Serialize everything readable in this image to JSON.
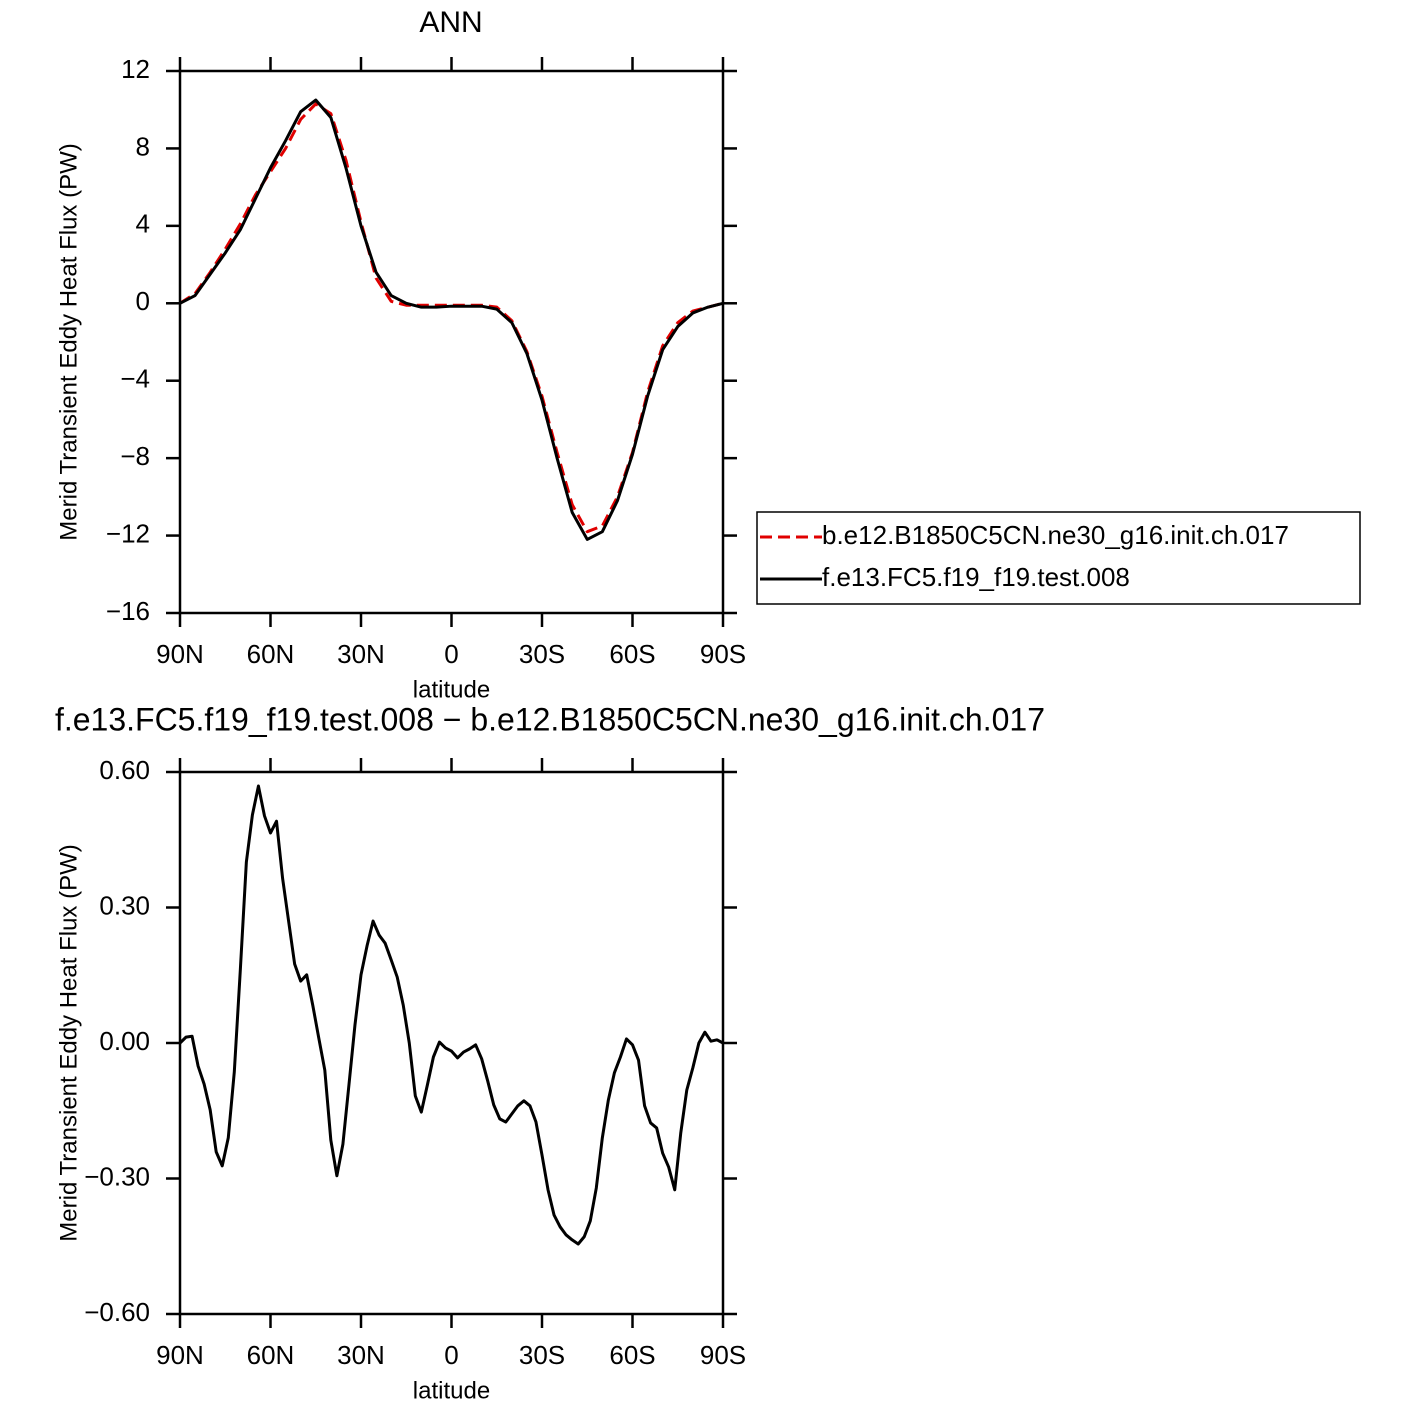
{
  "chart_data": [
    {
      "type": "line",
      "title": "ANN",
      "x_label": "latitude",
      "y_label": "Merid Transient Eddy Heat Flux (PW)",
      "x": [
        90,
        85,
        80,
        75,
        70,
        65,
        60,
        55,
        50,
        45,
        40,
        35,
        30,
        25,
        20,
        15,
        10,
        5,
        0,
        -5,
        -10,
        -15,
        -20,
        -25,
        -30,
        -35,
        -40,
        -45,
        -50,
        -55,
        -60,
        -65,
        -70,
        -75,
        -80,
        -85,
        -90
      ],
      "series": [
        {
          "name": "b.e12.B1850C5CN.ne30_g16.init.ch.017",
          "color": "#e00000",
          "linestyle": "dashed",
          "values": [
            0,
            0.5,
            1.6,
            2.8,
            4.1,
            5.6,
            6.8,
            8.0,
            9.5,
            10.3,
            9.8,
            7.4,
            4.2,
            1.3,
            0.1,
            -0.1,
            -0.1,
            -0.1,
            -0.1,
            -0.1,
            -0.1,
            -0.2,
            -0.9,
            -2.5,
            -4.8,
            -7.7,
            -10.4,
            -11.8,
            -11.5,
            -10.0,
            -7.7,
            -4.6,
            -2.2,
            -1.0,
            -0.4,
            -0.2,
            0
          ]
        },
        {
          "name": "f.e13.FC5.f19_f19.test.008",
          "color": "#000000",
          "linestyle": "solid",
          "values": [
            0,
            0.4,
            1.5,
            2.6,
            3.8,
            5.4,
            7.0,
            8.4,
            9.9,
            10.5,
            9.6,
            7.0,
            4.0,
            1.6,
            0.4,
            0.0,
            -0.2,
            -0.2,
            -0.15,
            -0.15,
            -0.15,
            -0.3,
            -1.0,
            -2.6,
            -5.0,
            -8.0,
            -10.8,
            -12.2,
            -11.8,
            -10.2,
            -7.8,
            -4.8,
            -2.4,
            -1.2,
            -0.5,
            -0.2,
            0
          ]
        }
      ],
      "xlim": [
        90,
        -90
      ],
      "xticks": [
        {
          "value": 90,
          "label": "90N"
        },
        {
          "value": 60,
          "label": "60N"
        },
        {
          "value": 30,
          "label": "30N"
        },
        0,
        {
          "value": -30,
          "label": "30S"
        },
        {
          "value": -60,
          "label": "60S"
        },
        {
          "value": -90,
          "label": "90S"
        }
      ],
      "ylim": [
        -16,
        12
      ],
      "yticks": [
        {
          "value": -16,
          "label": "−16"
        },
        {
          "value": -12,
          "label": "−12"
        },
        {
          "value": -8,
          "label": "−8"
        },
        {
          "value": -4,
          "label": "−4"
        },
        0,
        4,
        8,
        12
      ],
      "legend": "outside right"
    },
    {
      "type": "line",
      "title": "f.e13.FC5.f19_f19.test.008 − b.e12.B1850C5CN.ne30_g16.init.ch.017",
      "x_label": "latitude",
      "y_label": "Merid Transient Eddy Heat Flux (PW)",
      "x": [
        90,
        88,
        86,
        84,
        82,
        80,
        78,
        76,
        74,
        72,
        70,
        68,
        66,
        64,
        62,
        60,
        58,
        56,
        54,
        52,
        50,
        48,
        46,
        44,
        42,
        40,
        38,
        36,
        34,
        32,
        30,
        28,
        26,
        24,
        22,
        20,
        18,
        16,
        14,
        12,
        10,
        8,
        6,
        4,
        2,
        0,
        -2,
        -4,
        -6,
        -8,
        -10,
        -12,
        -14,
        -16,
        -18,
        -20,
        -22,
        -24,
        -26,
        -28,
        -30,
        -32,
        -34,
        -36,
        -38,
        -40,
        -42,
        -44,
        -46,
        -48,
        -50,
        -52,
        -54,
        -56,
        -58,
        -60,
        -62,
        -64,
        -66,
        -68,
        -70,
        -72,
        -74,
        -76,
        -78,
        -80,
        -82,
        -84,
        -86,
        -88,
        -90
      ],
      "series": [
        {
          "color": "#000000",
          "linestyle": "solid",
          "values": [
            0,
            0.013,
            0.015,
            -0.051,
            -0.091,
            -0.148,
            -0.241,
            -0.272,
            -0.21,
            -0.064,
            0.162,
            0.401,
            0.505,
            0.569,
            0.503,
            0.465,
            0.491,
            0.365,
            0.27,
            0.175,
            0.137,
            0.151,
            0.084,
            0.011,
            -0.06,
            -0.215,
            -0.294,
            -0.224,
            -0.093,
            0.04,
            0.151,
            0.215,
            0.27,
            0.239,
            0.221,
            0.184,
            0.146,
            0.084,
            0,
            -0.117,
            -0.153,
            -0.093,
            -0.031,
            0.002,
            -0.011,
            -0.018,
            -0.033,
            -0.02,
            -0.013,
            -0.004,
            -0.035,
            -0.084,
            -0.137,
            -0.168,
            -0.175,
            -0.157,
            -0.139,
            -0.128,
            -0.139,
            -0.175,
            -0.248,
            -0.325,
            -0.381,
            -0.407,
            -0.425,
            -0.436,
            -0.445,
            -0.429,
            -0.394,
            -0.321,
            -0.21,
            -0.126,
            -0.066,
            -0.031,
            0.009,
            -0.004,
            -0.038,
            -0.139,
            -0.177,
            -0.188,
            -0.244,
            -0.275,
            -0.325,
            -0.199,
            -0.104,
            -0.055,
            0,
            0.024,
            0.004,
            0.007,
            0
          ]
        }
      ],
      "xlim": [
        90,
        -90
      ],
      "xticks": [
        {
          "value": 90,
          "label": "90N"
        },
        {
          "value": 60,
          "label": "60N"
        },
        {
          "value": 30,
          "label": "30N"
        },
        0,
        {
          "value": -30,
          "label": "30S"
        },
        {
          "value": -60,
          "label": "60S"
        },
        {
          "value": -90,
          "label": "90S"
        }
      ],
      "ylim": [
        -0.6,
        0.6
      ],
      "yticks": [
        {
          "value": -0.6,
          "label": "−0.60"
        },
        {
          "value": -0.3,
          "label": "−0.30"
        },
        {
          "value": 0,
          "label": "0.00"
        },
        {
          "value": 0.3,
          "label": "0.30"
        },
        {
          "value": 0.6,
          "label": "0.60"
        }
      ]
    }
  ]
}
